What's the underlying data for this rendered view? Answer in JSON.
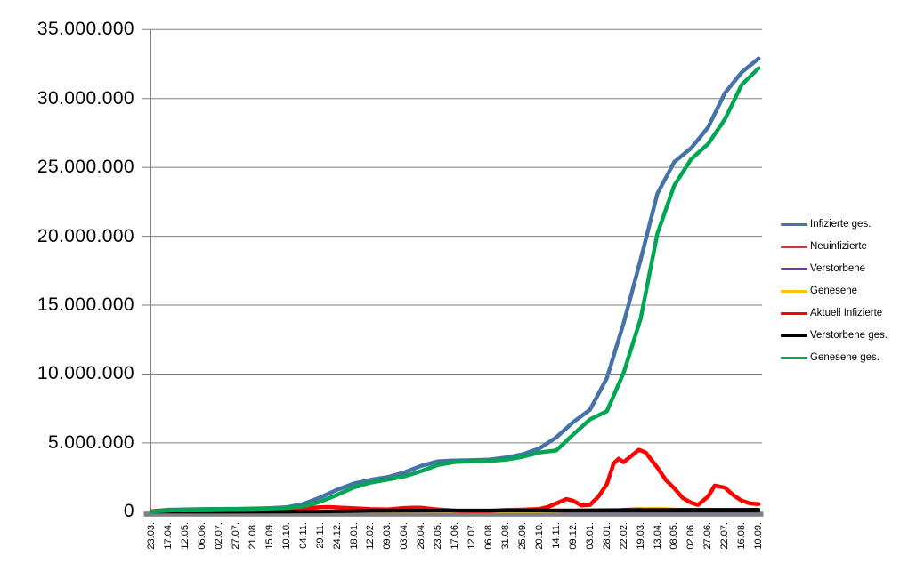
{
  "chart_data": {
    "type": "line",
    "title": "",
    "xlabel": "",
    "ylabel": "",
    "grid": "horizontal gridlines on",
    "legend_position": "right",
    "x_label_style": "rotated vertical, reads bottom-to-top",
    "y_range_millions": [
      0,
      35
    ],
    "y_tick_values_millions": [
      0,
      5,
      10,
      15,
      20,
      25,
      30,
      35
    ],
    "y_tick_labels": [
      "0",
      "5.000.000",
      "10.000.000",
      "15.000.000",
      "20.000.000",
      "25.000.000",
      "30.000.000",
      "35.000.000"
    ],
    "x_tick_labels": [
      "23.03.",
      "17.04.",
      "12.05.",
      "06.06.",
      "02.07.",
      "27.07.",
      "21.08.",
      "15.09.",
      "10.10.",
      "04.11.",
      "29.11.",
      "24.12.",
      "18.01.",
      "12.02.",
      "09.03.",
      "03.04.",
      "28.04.",
      "23.05.",
      "17.06.",
      "12.07.",
      "06.08.",
      "31.08.",
      "25.09.",
      "20.10.",
      "14.11.",
      "09.12.",
      "03.01.",
      "28.01.",
      "22.02.",
      "19.03.",
      "13.04.",
      "08.05.",
      "02.06.",
      "27.06.",
      "22.07.",
      "16.08.",
      "10.09."
    ],
    "colors": {
      "gridline": "#808080",
      "axis_line": "#808080",
      "axis_bar": "#808080",
      "background": "#FFFFFF",
      "text": "#000000"
    },
    "series": [
      {
        "name": "Infizierte ges.",
        "color": "#4572A7",
        "line_width": 4.5,
        "values_millions": [
          0.03,
          0.14,
          0.17,
          0.185,
          0.198,
          0.207,
          0.232,
          0.262,
          0.32,
          0.56,
          1.03,
          1.59,
          2.05,
          2.32,
          2.51,
          2.86,
          3.33,
          3.66,
          3.72,
          3.74,
          3.78,
          3.93,
          4.17,
          4.6,
          5.4,
          6.5,
          7.4,
          9.7,
          13.7,
          18.3,
          23.1,
          25.4,
          26.4,
          27.9,
          30.4,
          31.9,
          32.9
        ]
      },
      {
        "name": "Neuinfizierte",
        "color": "#AA4643",
        "line_width": 2.5,
        "values_millions": [
          0.004,
          0.003,
          0.001,
          0.0005,
          0.0004,
          0.0008,
          0.0012,
          0.0015,
          0.003,
          0.015,
          0.019,
          0.022,
          0.016,
          0.009,
          0.008,
          0.018,
          0.021,
          0.008,
          0.002,
          0.001,
          0.002,
          0.008,
          0.008,
          0.009,
          0.03,
          0.055,
          0.04,
          0.09,
          0.19,
          0.25,
          0.16,
          0.07,
          0.03,
          0.08,
          0.12,
          0.05,
          0.03
        ]
      },
      {
        "name": "Verstorbene",
        "color": "#6E3FA3",
        "line_width": 2.5,
        "values_millions": [
          0.0002,
          0.0008,
          0.0006,
          0.0003,
          0.0002,
          0.0002,
          0.0002,
          0.0002,
          0.0002,
          0.0004,
          0.0008,
          0.0009,
          0.0009,
          0.0006,
          0.0004,
          0.0003,
          0.0003,
          0.0002,
          0.0001,
          0.0001,
          0.0001,
          0.0001,
          0.0001,
          0.0002,
          0.0002,
          0.0004,
          0.0004,
          0.0003,
          0.0003,
          0.0003,
          0.0003,
          0.0002,
          0.0001,
          0.0001,
          0.0001,
          0.0001,
          0.0001
        ]
      },
      {
        "name": "Genesene",
        "color": "#FFC000",
        "line_width": 2.5,
        "values_millions": [
          0.002,
          0.004,
          0.003,
          0.001,
          0.0008,
          0.001,
          0.0012,
          0.0015,
          0.002,
          0.008,
          0.016,
          0.02,
          0.018,
          0.01,
          0.008,
          0.014,
          0.018,
          0.012,
          0.004,
          0.002,
          0.002,
          0.006,
          0.008,
          0.008,
          0.02,
          0.045,
          0.045,
          0.06,
          0.15,
          0.24,
          0.28,
          0.22,
          0.1,
          0.08,
          0.13,
          0.12,
          0.06
        ]
      },
      {
        "name": "Aktuell Infizierte",
        "color": "#FF0000",
        "line_width": 4.5,
        "x": [
          0,
          0.5,
          1,
          2,
          3,
          4,
          5,
          6,
          7,
          8,
          9,
          9.5,
          10,
          10.5,
          11,
          12,
          13,
          14,
          15,
          15.5,
          16,
          17,
          18,
          19,
          20,
          21,
          22,
          23,
          23.5,
          24,
          24.6,
          25,
          25.5,
          26,
          26.5,
          27,
          27.4,
          27.7,
          28,
          28.4,
          28.9,
          29.3,
          30,
          30.5,
          31,
          31.5,
          32,
          32.4,
          33,
          33.4,
          34,
          34.5,
          35,
          35.5,
          36
        ],
        "values_millions": [
          0.025,
          0.06,
          0.05,
          0.02,
          0.009,
          0.007,
          0.012,
          0.017,
          0.023,
          0.05,
          0.2,
          0.28,
          0.32,
          0.34,
          0.31,
          0.25,
          0.19,
          0.16,
          0.27,
          0.3,
          0.29,
          0.16,
          0.08,
          0.05,
          0.06,
          0.12,
          0.15,
          0.2,
          0.35,
          0.6,
          0.92,
          0.8,
          0.45,
          0.5,
          1.1,
          2.0,
          3.5,
          3.85,
          3.6,
          4.0,
          4.5,
          4.3,
          3.2,
          2.3,
          1.7,
          1.0,
          0.65,
          0.5,
          1.1,
          1.9,
          1.75,
          1.2,
          0.8,
          0.6,
          0.55
        ]
      },
      {
        "name": "Verstorbene ges.",
        "color": "#000000",
        "line_width": 4,
        "values_millions": [
          0.001,
          0.004,
          0.0075,
          0.0087,
          0.009,
          0.0091,
          0.0093,
          0.0094,
          0.0096,
          0.011,
          0.016,
          0.029,
          0.047,
          0.064,
          0.072,
          0.077,
          0.082,
          0.087,
          0.09,
          0.091,
          0.092,
          0.0923,
          0.093,
          0.0947,
          0.098,
          0.104,
          0.112,
          0.117,
          0.121,
          0.126,
          0.132,
          0.136,
          0.139,
          0.14,
          0.142,
          0.145,
          0.148
        ]
      },
      {
        "name": "Genesene ges.",
        "color": "#00A651",
        "line_width": 4.5,
        "values_millions": [
          0.006,
          0.085,
          0.148,
          0.168,
          0.183,
          0.194,
          0.208,
          0.234,
          0.275,
          0.39,
          0.72,
          1.22,
          1.76,
          2.12,
          2.33,
          2.57,
          2.95,
          3.4,
          3.61,
          3.66,
          3.69,
          3.78,
          3.99,
          4.3,
          4.45,
          5.6,
          6.7,
          7.3,
          10.1,
          14.0,
          20.2,
          23.7,
          25.6,
          26.7,
          28.5,
          31.0,
          32.2
        ]
      }
    ]
  },
  "legend": {
    "items": [
      {
        "label": "Infizierte ges."
      },
      {
        "label": "Neuinfizierte"
      },
      {
        "label": "Verstorbene"
      },
      {
        "label": "Genesene"
      },
      {
        "label": "Aktuell Infizierte"
      },
      {
        "label": "Verstorbene ges."
      },
      {
        "label": "Genesene ges."
      }
    ]
  }
}
